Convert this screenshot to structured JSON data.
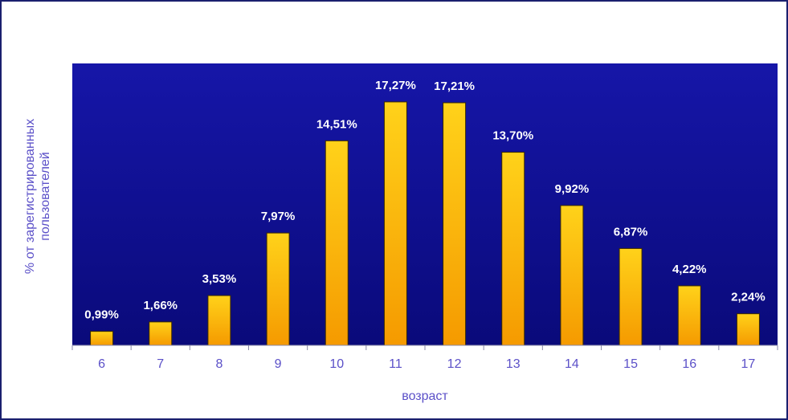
{
  "chart_data": {
    "type": "bar",
    "categories": [
      "6",
      "7",
      "8",
      "9",
      "10",
      "11",
      "12",
      "13",
      "14",
      "15",
      "16",
      "17"
    ],
    "values": [
      0.99,
      1.66,
      3.53,
      7.97,
      14.51,
      17.27,
      17.21,
      13.7,
      9.92,
      6.87,
      4.22,
      2.24
    ],
    "data_labels": [
      "0,99%",
      "1,66%",
      "3,53%",
      "7,97%",
      "14,51%",
      "17,27%",
      "17,21%",
      "13,70%",
      "9,92%",
      "6,87%",
      "4,22%",
      "2,24%"
    ],
    "title": "",
    "xlabel": "возраст",
    "ylabel_lines": [
      "% от зарегистрированных",
      "пользователей"
    ],
    "ylim": [
      0,
      20
    ],
    "grid": false,
    "legend": "none",
    "colors": {
      "plot_bg_top": "#1616a8",
      "plot_bg_bottom": "#0a0a7a",
      "bar_top": "#ffd21a",
      "bar_bottom": "#f59a00",
      "bar_stroke": "#3a2a00",
      "data_label": "#ffffff",
      "axis_text": "#5b50c8",
      "frame": "#1a1f6e"
    }
  }
}
